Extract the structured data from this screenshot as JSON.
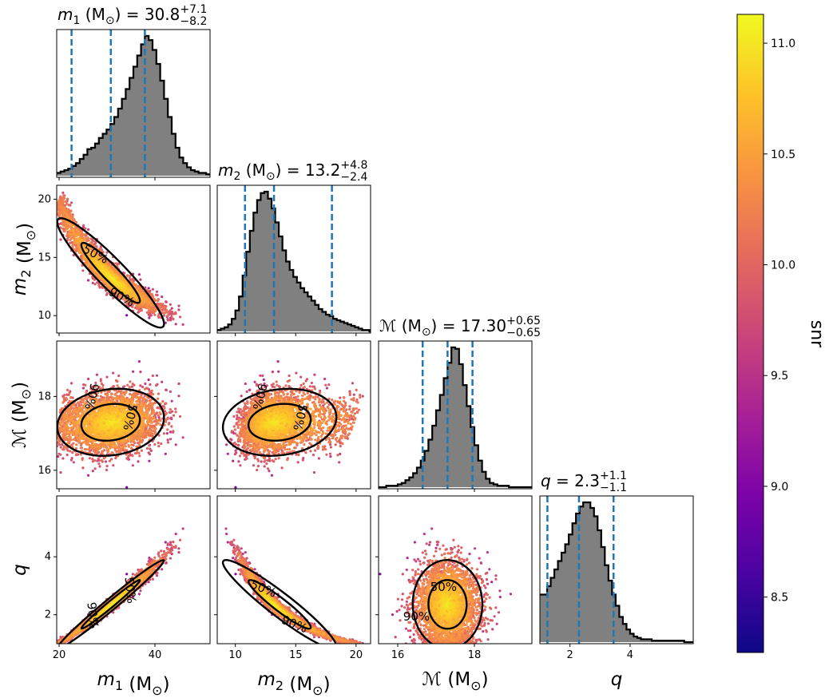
{
  "chart_data": {
    "type": "scatter",
    "description_kind": "corner",
    "parameters": [
      {
        "key": "m1",
        "label_sym": "m",
        "label_sub": "1",
        "label_unit": " (M",
        "label_unit_sub": "⊙",
        "label_close": ")",
        "range": [
          19.5,
          51.5
        ],
        "ticks": [
          20,
          40
        ],
        "tick_labels": [
          "20",
          "40"
        ],
        "title_value": "30.8",
        "title_plus": "+7.1",
        "title_minus": "−8.2",
        "median": 30.8,
        "lower": 22.6,
        "upper": 37.9
      },
      {
        "key": "m2",
        "label_sym": "m",
        "label_sub": "2",
        "label_unit": " (M",
        "label_unit_sub": "⊙",
        "label_close": ")",
        "range": [
          8.5,
          21.2
        ],
        "ticks": [
          10,
          15,
          20
        ],
        "tick_labels": [
          "10",
          "15",
          "20"
        ],
        "title_value": "13.2",
        "title_plus": "+4.8",
        "title_minus": "−2.4",
        "median": 13.2,
        "lower": 10.8,
        "upper": 18.0
      },
      {
        "key": "mc",
        "label_sym": "ℳ",
        "label_sub": "",
        "label_unit": " (M",
        "label_unit_sub": "⊙",
        "label_close": ")",
        "range": [
          15.5,
          19.5
        ],
        "ticks": [
          16,
          18
        ],
        "tick_labels": [
          "16",
          "18"
        ],
        "title_value": "17.30",
        "title_plus": "+0.65",
        "title_minus": "−0.65",
        "median": 17.3,
        "lower": 16.65,
        "upper": 17.95
      },
      {
        "key": "q",
        "label_sym": "q",
        "label_sub": "",
        "label_unit": "",
        "label_unit_sub": "",
        "label_close": "",
        "range": [
          1.0,
          6.1
        ],
        "ticks": [
          2,
          4
        ],
        "tick_labels": [
          "2",
          "4"
        ],
        "title_value": "2.3",
        "title_plus": "+1.1",
        "title_minus": "−1.1",
        "median": 2.3,
        "lower": 1.25,
        "upper": 3.45
      }
    ],
    "y_ticks": {
      "m2": {
        "ticks": [
          10,
          15,
          20
        ],
        "labels": [
          "10",
          "15",
          "20"
        ]
      },
      "mc": {
        "ticks": [
          16,
          18
        ],
        "labels": [
          "16",
          "18"
        ]
      },
      "q": {
        "ticks": [
          2,
          4
        ],
        "labels": [
          "2",
          "4"
        ]
      }
    },
    "histograms": {
      "m1": {
        "edges_start": 19.5,
        "edges_step": 0.8,
        "values": [
          2,
          3,
          4,
          5,
          7,
          9,
          12,
          15,
          19,
          20,
          23,
          27,
          30,
          33,
          37,
          42,
          48,
          55,
          62,
          70,
          78,
          86,
          94,
          100,
          97,
          90,
          80,
          68,
          55,
          42,
          30,
          20,
          13,
          9,
          6,
          4,
          3,
          2,
          2,
          1,
          1
        ]
      },
      "m2": {
        "edges_start": 8.5,
        "edges_step": 0.3,
        "values": [
          1,
          2,
          3,
          5,
          9,
          15,
          25,
          40,
          57,
          72,
          85,
          94,
          99,
          100,
          95,
          88,
          78,
          68,
          58,
          50,
          44,
          39,
          35,
          31,
          28,
          25,
          22,
          19,
          16,
          14,
          12,
          11,
          9,
          8,
          7,
          6,
          5,
          4,
          3,
          2,
          1,
          1,
          0
        ]
      },
      "mc": {
        "edges_start": 15.5,
        "edges_step": 0.1,
        "values": [
          0,
          0,
          1,
          1,
          1,
          2,
          3,
          5,
          7,
          10,
          14,
          19,
          26,
          34,
          44,
          55,
          66,
          78,
          89,
          100,
          99,
          88,
          73,
          58,
          43,
          30,
          19,
          11,
          6,
          3,
          2,
          1,
          1,
          1,
          0,
          0,
          0,
          0,
          0,
          0
        ]
      },
      "q": {
        "edges_start": 1.0,
        "edges_step": 0.12,
        "values": [
          34,
          34,
          40,
          46,
          52,
          58,
          64,
          70,
          77,
          85,
          92,
          97,
          100,
          100,
          96,
          90,
          80,
          68,
          55,
          44,
          34,
          26,
          18,
          13,
          9,
          6,
          4,
          3,
          2,
          2,
          2,
          1,
          1,
          1,
          1,
          1,
          1,
          1,
          1,
          1,
          0,
          0,
          0
        ]
      }
    },
    "contour_labels": [
      "50%",
      "90%"
    ],
    "colorbar": {
      "label": "snr",
      "range": [
        8.25,
        11.13
      ],
      "ticks": [
        8.5,
        9.0,
        9.5,
        10.0,
        10.5,
        11.0
      ],
      "tick_labels": [
        "8.5",
        "9.0",
        "9.5",
        "10.0",
        "10.5",
        "11.0"
      ]
    },
    "colors": {
      "quantile_line": "#1f77b4",
      "hist_fill": "#808080",
      "hist_edge": "#000000",
      "contour": "#000000"
    }
  }
}
